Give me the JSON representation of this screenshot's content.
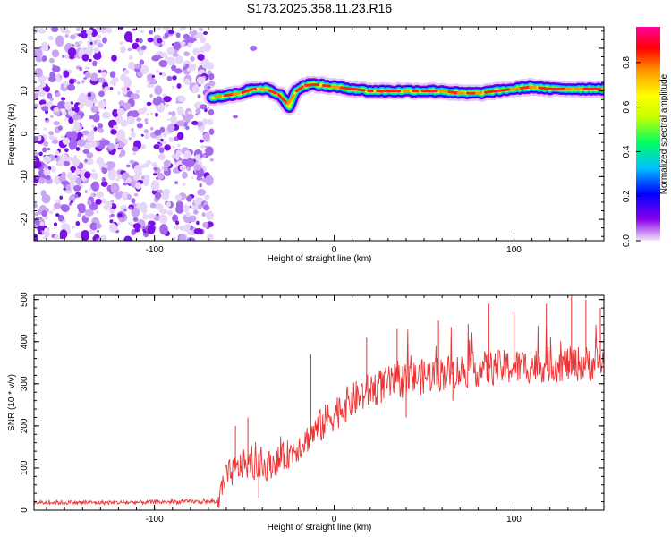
{
  "title": "S173.2025.358.11.23.R16",
  "chart_data": [
    {
      "type": "heatmap",
      "name": "spectrogram",
      "xlabel": "Height of straight line (km)",
      "ylabel": "Frequency (Hz)",
      "xlim": [
        -167,
        150
      ],
      "ylim": [
        -25,
        25
      ],
      "xticks": [
        -100,
        0,
        100
      ],
      "yticks": [
        20,
        10,
        0,
        -10,
        -20
      ],
      "colorbar": {
        "label": "Normalized spectral amplitude",
        "range": [
          0,
          0.96
        ],
        "ticks": [
          "0.0",
          "0.2",
          "0.4",
          "0.6",
          "0.8"
        ],
        "colors": [
          "#f3e6fb",
          "#8a00e8",
          "#0000ff",
          "#00c0ff",
          "#00ff60",
          "#c8ff00",
          "#ffff00",
          "#ff9000",
          "#ff0000",
          "#ff00a0"
        ]
      },
      "noise_region_x": [
        -167,
        -68
      ],
      "ridge": {
        "x": [
          -68,
          -60,
          -52,
          -45,
          -38,
          -30,
          -25,
          -22,
          -20,
          -15,
          -10,
          0,
          10,
          20,
          30,
          40,
          50,
          60,
          70,
          80,
          90,
          100,
          110,
          120,
          130,
          140,
          150
        ],
        "freq": [
          8.5,
          9.0,
          9.5,
          10.5,
          10.5,
          9.0,
          6.5,
          9.5,
          10.5,
          11.5,
          11.5,
          11.0,
          10.5,
          10.0,
          10.0,
          10.0,
          10.0,
          10.0,
          9.5,
          9.5,
          10.0,
          10.5,
          11.0,
          10.5,
          10.5,
          10.5,
          10.5
        ]
      }
    },
    {
      "type": "line",
      "name": "snr",
      "xlabel": "Height of straight line (km)",
      "ylabel": "SNR (10 * v/v)",
      "xlim": [
        -167,
        150
      ],
      "ylim": [
        0,
        510
      ],
      "xticks": [
        -100,
        0,
        100
      ],
      "yticks": [
        0,
        100,
        200,
        300,
        400,
        500
      ],
      "color": "#ee3333",
      "trend": {
        "x": [
          -167,
          -120,
          -80,
          -65,
          -60,
          -50,
          -40,
          -30,
          -20,
          -10,
          0,
          10,
          20,
          30,
          40,
          60,
          80,
          100,
          120,
          150
        ],
        "y": [
          18,
          18,
          20,
          20,
          80,
          110,
          100,
          120,
          150,
          190,
          230,
          260,
          285,
          300,
          310,
          325,
          335,
          340,
          345,
          350
        ]
      },
      "spikes": [
        {
          "x": -55,
          "y": 200
        },
        {
          "x": -48,
          "y": 220
        },
        {
          "x": -42,
          "y": 30
        },
        {
          "x": -13,
          "y": 370
        },
        {
          "x": 18,
          "y": 410
        },
        {
          "x": 35,
          "y": 430
        },
        {
          "x": 58,
          "y": 450
        },
        {
          "x": 86,
          "y": 490
        },
        {
          "x": 100,
          "y": 470
        },
        {
          "x": 118,
          "y": 490
        },
        {
          "x": 132,
          "y": 510
        },
        {
          "x": 140,
          "y": 500
        },
        {
          "x": 148,
          "y": 480
        },
        {
          "x": 66,
          "y": 260
        },
        {
          "x": 40,
          "y": 220
        }
      ]
    }
  ]
}
